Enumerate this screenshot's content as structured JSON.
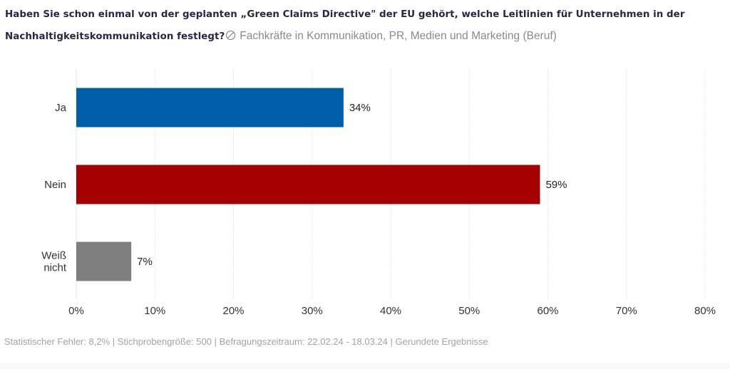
{
  "header": {
    "question": "Haben Sie schon einmal von der geplanten „Green Claims Directive\" der EU gehört, welche Leitlinien für Unternehmen in der Nachhaltigkeitskommunikation festlegt?",
    "filter_icon": "filter-off-icon",
    "filter_label": "Fachkräfte in Kommunikation, PR, Medien und Marketing (Beruf)"
  },
  "chart_data": {
    "type": "bar",
    "orientation": "horizontal",
    "title": "Haben Sie schon einmal von der geplanten „Green Claims Directive\" der EU gehört, welche Leitlinien für Unternehmen in der Nachhaltigkeitskommunikation festlegt?",
    "categories": [
      "Ja",
      "Nein",
      "Weiß nicht"
    ],
    "category_lines": [
      [
        "Ja"
      ],
      [
        "Nein"
      ],
      [
        "Weiß",
        "nicht"
      ]
    ],
    "values": [
      34,
      59,
      7
    ],
    "value_labels": [
      "34%",
      "59%",
      "7%"
    ],
    "colors": [
      "#005ea8",
      "#a50000",
      "#7f7f7f"
    ],
    "xlabel": "",
    "ylabel": "",
    "xlim": [
      0,
      80
    ],
    "xticks": [
      0,
      10,
      20,
      30,
      40,
      50,
      60,
      70,
      80
    ],
    "xtick_labels": [
      "0%",
      "10%",
      "20%",
      "30%",
      "40%",
      "50%",
      "60%",
      "70%",
      "80%"
    ],
    "grid": true,
    "legend": "none"
  },
  "footer": {
    "text": "Statistischer Fehler: 8,2% | Stichprobengröße: 500 | Befragungszeitraum: 22.02.24 - 18.03.24 | Gerundete Ergebnisse"
  }
}
